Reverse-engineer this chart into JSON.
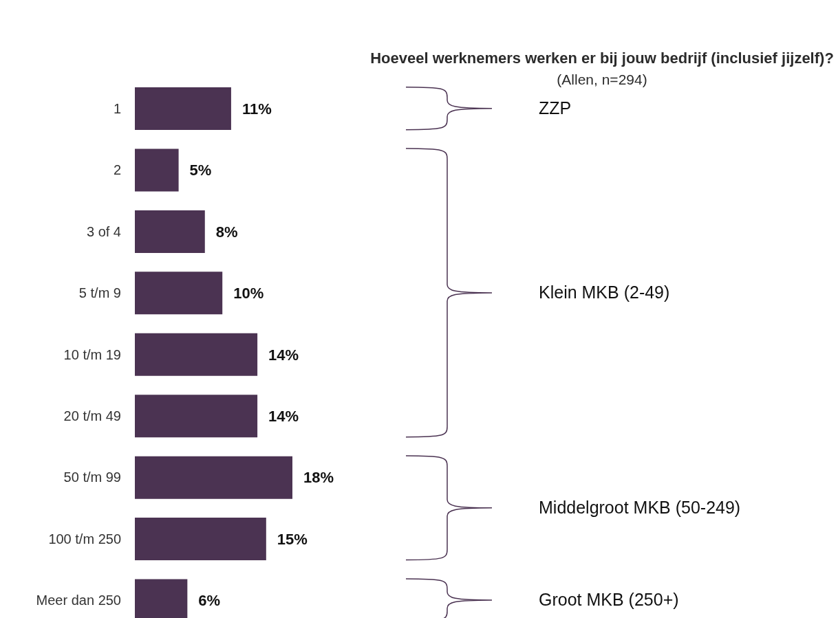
{
  "chart_data": {
    "type": "bar",
    "orientation": "horizontal",
    "title": "Hoeveel werknemers werken er bij jouw bedrijf (inclusief jijzelf)?",
    "subtitle": "(Allen, n=294)",
    "categories": [
      "1",
      "2",
      "3 of 4",
      "5 t/m 9",
      "10 t/m 19",
      "20 t/m 49",
      "50 t/m 99",
      "100 t/m 250",
      "Meer dan 250"
    ],
    "values": [
      11,
      5,
      8,
      10,
      14,
      14,
      18,
      15,
      6
    ],
    "value_labels": [
      "11%",
      "5%",
      "8%",
      "10%",
      "14%",
      "14%",
      "18%",
      "15%",
      "6%"
    ],
    "color": "#4b3352",
    "annotations": [
      "ZZP",
      "Klein MKB (2-49)",
      "Middelgroot MKB (50-249)",
      "Groot MKB (250+)"
    ]
  }
}
